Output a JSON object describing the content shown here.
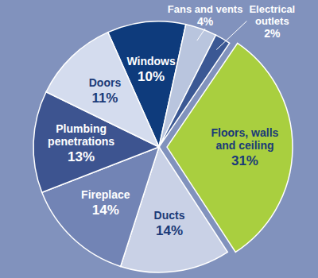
{
  "chart_data": {
    "type": "pie",
    "categories": [
      "Windows",
      "Fans and vents",
      "Electrical outlets",
      "Floors, walls and ceiling",
      "Ducts",
      "Fireplace",
      "Plumbing penetrations",
      "Doors"
    ],
    "values": [
      10,
      4,
      2,
      31,
      14,
      14,
      13,
      11
    ],
    "value_labels": [
      "10%",
      "4%",
      "2%",
      "31%",
      "14%",
      "14%",
      "13%",
      "11%"
    ],
    "colors": [
      "#0e3b7c",
      "#b9c5de",
      "#3b5894",
      "#a9cf3f",
      "#c9d1e6",
      "#7284b5",
      "#3d5490",
      "#d4dcee"
    ],
    "data_labels": true
  }
}
